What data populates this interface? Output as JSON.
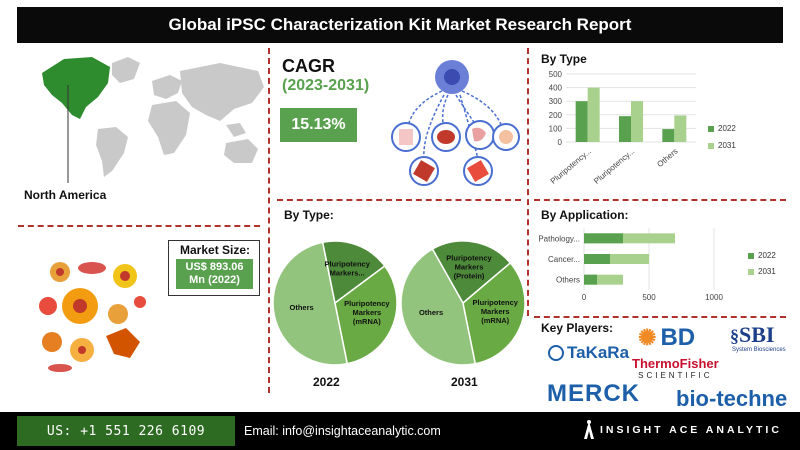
{
  "title": "Global iPSC Characterization Kit Market Research Report",
  "region": {
    "label": "North America"
  },
  "cagr": {
    "title": "CAGR",
    "period": "(2023-2031)",
    "value": "15.13%"
  },
  "market_size": {
    "label": "Market Size:",
    "value_line1": "US$ 893.06",
    "value_line2": "Mn (2022)"
  },
  "sections": {
    "by_type_bar": "By Type",
    "by_type_pie": "By Type:",
    "by_application": "By Application:",
    "key_players": "Key Players:"
  },
  "key_players": [
    "TaKaRa",
    "BD",
    "SBI",
    "System Biosciences",
    "ThermoFisher",
    "SCIENTIFIC",
    "MERCK",
    "bio-techne"
  ],
  "footer": {
    "phone": "US: +1 551 226 6109",
    "email": "Email: info@insightaceanalytic.com",
    "brand": "INSIGHT ACE ANALYTIC"
  },
  "colors": {
    "dark_green": "#59a14f",
    "light_green": "#a9d18e",
    "pie_dark": "#4d8a3a",
    "pie_mid": "#6aaa44",
    "pie_light": "#93c47d",
    "separator": "#b0322b",
    "map_highlight": "#2e8b2e"
  },
  "chart_data": [
    {
      "type": "bar",
      "title": "By Type",
      "categories": [
        "Pluripotency...",
        "Pluripotency...",
        "Others"
      ],
      "series": [
        {
          "name": "2022",
          "values": [
            300,
            190,
            95
          ]
        },
        {
          "name": "2031",
          "values": [
            400,
            300,
            195
          ]
        }
      ],
      "ylim": [
        0,
        500
      ],
      "yticks": [
        0,
        100,
        200,
        300,
        400,
        500
      ],
      "legend": "right"
    },
    {
      "type": "bar",
      "orientation": "horizontal",
      "title": "By Application:",
      "categories": [
        "Pathology...",
        "Cancer...",
        "Others"
      ],
      "series": [
        {
          "name": "2022",
          "values": [
            300,
            200,
            100
          ]
        },
        {
          "name": "2031",
          "values": [
            700,
            500,
            300
          ]
        }
      ],
      "xlim": [
        0,
        1000
      ],
      "xticks": [
        0,
        500,
        1000
      ],
      "legend": "right"
    },
    {
      "type": "pie",
      "title": "2022",
      "labels": [
        "Others",
        "Pluripotency Markers...",
        "Pluripotency Markers (mRNA)"
      ],
      "values": [
        50,
        18,
        32
      ]
    },
    {
      "type": "pie",
      "title": "2031",
      "labels": [
        "Others",
        "Pluripotency Markers (Protein)",
        "Pluripotency Markers (mRNA)"
      ],
      "values": [
        45,
        22,
        33
      ]
    }
  ]
}
